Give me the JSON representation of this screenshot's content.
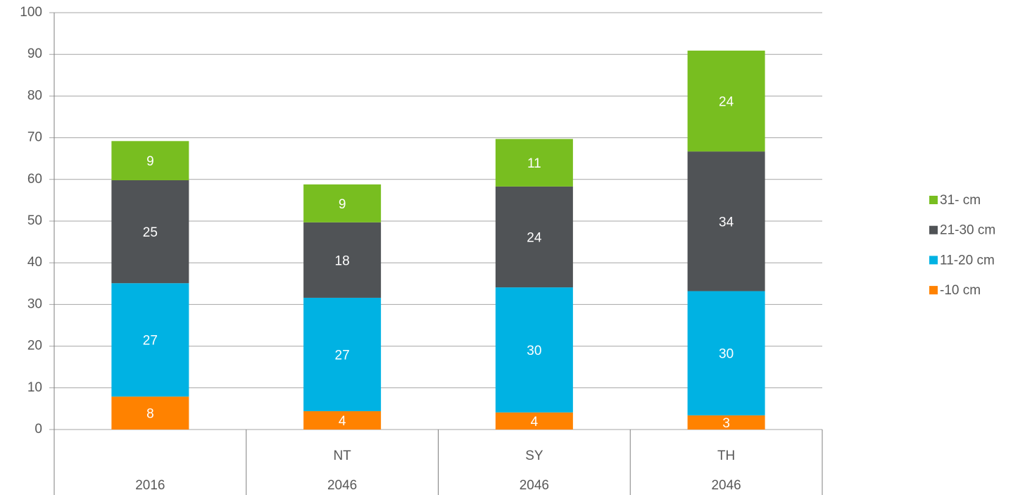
{
  "chart_data": {
    "type": "stacked_bar",
    "categories": [
      null,
      "NT",
      "SY",
      "TH"
    ],
    "category_groups": [
      "2016",
      "2046",
      "2046",
      "2046"
    ],
    "series": [
      {
        "name": "-10 cm",
        "color": "#ff8200",
        "values": [
          7.9,
          4.4,
          4.1,
          3.4
        ],
        "value_labels": [
          "8",
          "4",
          "4",
          "3"
        ]
      },
      {
        "name": "11-20 cm",
        "color": "#00b2e3",
        "values": [
          27.2,
          27.2,
          30.0,
          29.8
        ],
        "value_labels": [
          "27",
          "27",
          "30",
          "30"
        ]
      },
      {
        "name": "21-30 cm",
        "color": "#505356",
        "values": [
          24.7,
          18.1,
          24.2,
          33.5
        ],
        "value_labels": [
          "25",
          "18",
          "24",
          "34"
        ]
      },
      {
        "name": "31- cm",
        "color": "#78be20",
        "values": [
          9.4,
          9.1,
          11.4,
          24.2
        ],
        "value_labels": [
          "9",
          "9",
          "11",
          "24"
        ]
      }
    ],
    "ylim": [
      0,
      100
    ],
    "yticks": [
      0,
      10,
      20,
      30,
      40,
      50,
      60,
      70,
      80,
      90,
      100
    ],
    "grid": true,
    "legend": "right"
  }
}
